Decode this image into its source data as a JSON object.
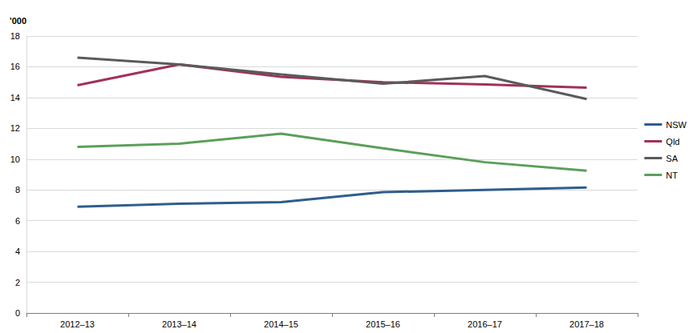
{
  "chart_data": {
    "type": "line",
    "y_label": "'000",
    "categories": [
      "2012–13",
      "2013–14",
      "2014–15",
      "2015–16",
      "2016–17",
      "2017–18"
    ],
    "series": [
      {
        "name": "NSW",
        "color": "#2f5d8c",
        "values": [
          6.9,
          7.1,
          7.2,
          7.85,
          8.0,
          8.15
        ]
      },
      {
        "name": "Qld",
        "color": "#a1305c",
        "values": [
          14.8,
          16.15,
          15.35,
          15.0,
          14.85,
          14.65
        ]
      },
      {
        "name": "SA",
        "color": "#5a5a5a",
        "values": [
          16.6,
          16.15,
          15.5,
          14.9,
          15.4,
          13.9
        ]
      },
      {
        "name": "NT",
        "color": "#5b9f5b",
        "values": [
          10.8,
          11.0,
          11.65,
          10.7,
          9.8,
          9.25
        ]
      }
    ],
    "ylim": [
      0,
      18
    ],
    "yticks": [
      0,
      2,
      4,
      6,
      8,
      10,
      12,
      14,
      16,
      18
    ],
    "grid": true,
    "legend": "right"
  }
}
